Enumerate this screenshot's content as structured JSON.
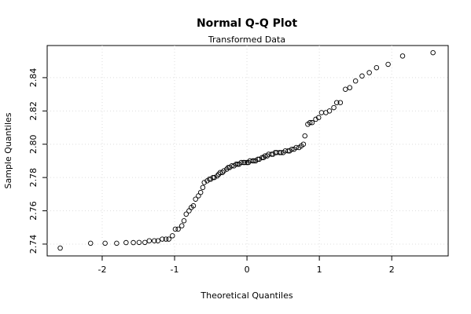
{
  "chart_data": {
    "type": "scatter",
    "title": "Normal Q-Q Plot",
    "subtitle": "Transformed Data",
    "x_label": "Theoretical Quantiles",
    "y_label": "Sample Quantiles",
    "x": [
      -2.58,
      -2.16,
      -1.96,
      -1.8,
      -1.67,
      -1.57,
      -1.49,
      -1.41,
      -1.35,
      -1.28,
      -1.23,
      -1.17,
      -1.12,
      -1.08,
      -1.03,
      -0.99,
      -0.95,
      -0.9,
      -0.87,
      -0.84,
      -0.8,
      -0.77,
      -0.74,
      -0.71,
      -0.67,
      -0.64,
      -0.61,
      -0.59,
      -0.55,
      -0.52,
      -0.5,
      -0.47,
      -0.45,
      -0.41,
      -0.39,
      -0.37,
      -0.34,
      -0.32,
      -0.28,
      -0.26,
      -0.24,
      -0.21,
      -0.18,
      -0.15,
      -0.13,
      -0.11,
      -0.08,
      -0.05,
      -0.03,
      0,
      0.02,
      0.04,
      0.08,
      0.1,
      0.12,
      0.15,
      0.17,
      0.21,
      0.23,
      0.25,
      0.28,
      0.3,
      0.34,
      0.36,
      0.39,
      0.41,
      0.45,
      0.47,
      0.5,
      0.53,
      0.57,
      0.59,
      0.62,
      0.65,
      0.68,
      0.72,
      0.75,
      0.78,
      0.8,
      0.84,
      0.87,
      0.9,
      0.95,
      0.99,
      1.03,
      1.09,
      1.14,
      1.2,
      1.24,
      1.29,
      1.36,
      1.42,
      1.5,
      1.59,
      1.69,
      1.79,
      1.95,
      2.15,
      2.57
    ],
    "values": [
      2.7376,
      2.7405,
      2.7405,
      2.7405,
      2.7409,
      2.7409,
      2.741,
      2.741,
      2.742,
      2.742,
      2.742,
      2.743,
      2.743,
      2.743,
      2.745,
      2.749,
      2.749,
      2.751,
      2.754,
      2.758,
      2.76,
      2.762,
      2.763,
      2.767,
      2.769,
      2.771,
      2.774,
      2.777,
      2.778,
      2.779,
      2.779,
      2.78,
      2.78,
      2.781,
      2.782,
      2.783,
      2.783,
      2.784,
      2.785,
      2.786,
      2.786,
      2.787,
      2.787,
      2.788,
      2.788,
      2.788,
      2.789,
      2.789,
      2.789,
      2.789,
      2.789,
      2.79,
      2.79,
      2.79,
      2.79,
      2.791,
      2.791,
      2.792,
      2.792,
      2.793,
      2.793,
      2.794,
      2.794,
      2.794,
      2.795,
      2.795,
      2.795,
      2.795,
      2.795,
      2.796,
      2.796,
      2.796,
      2.797,
      2.797,
      2.798,
      2.798,
      2.799,
      2.8,
      2.805,
      2.812,
      2.813,
      2.813,
      2.815,
      2.816,
      2.819,
      2.819,
      2.82,
      2.822,
      2.825,
      2.825,
      2.833,
      2.834,
      2.838,
      2.841,
      2.843,
      2.846,
      2.848,
      2.853,
      2.855
    ],
    "color": "#000000",
    "xlim": [
      -2.76,
      2.78
    ],
    "ylim": [
      2.7329,
      2.8593
    ],
    "xticks": [
      -2,
      -1,
      0,
      1,
      2
    ],
    "yticks": [
      2.74,
      2.76,
      2.78,
      {
        "value": 2.8,
        "label": "2.80"
      },
      2.82,
      2.84
    ],
    "grid": true
  }
}
